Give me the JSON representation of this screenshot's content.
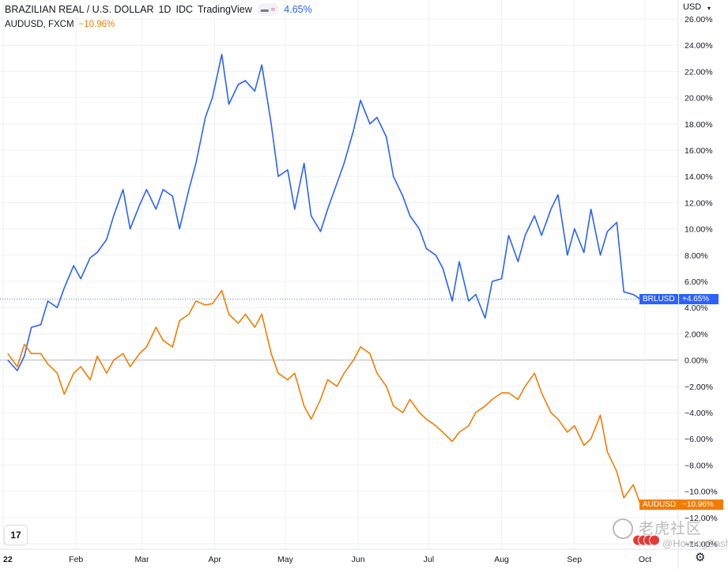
{
  "header": {
    "title": "BRAZILIAN REAL / U.S. DOLLAR",
    "interval": "1D",
    "source": "IDC",
    "platform": "TradingView",
    "pill_left": "▬",
    "pill_right": "≈",
    "change": "4.65%",
    "compare_symbol": "AUDUSD, FXCM",
    "compare_change": "−10.96%"
  },
  "axis": {
    "currency": "USD",
    "chevron": "▾"
  },
  "tags": {
    "brl_name": "BRLUSD",
    "brl_value": "+4.65%",
    "aud_name": "AUDUSD",
    "aud_value": "−10.96%"
  },
  "watermark": {
    "text_cn": "老虎社区",
    "handle": "@HowingCash"
  },
  "icons": {
    "logo": "tradingview-logo-icon",
    "settings": "gear-icon",
    "watermark": "tiger-logo-icon"
  },
  "colors": {
    "brl": "#2962ff",
    "aud": "#f57c00",
    "grid": "#eef0f3",
    "zero": "#b2b5be",
    "text": "#131722"
  },
  "chart_data": {
    "type": "line",
    "y_unit": "%",
    "ylim": [
      -14,
      26
    ],
    "yticks": [
      "26.00%",
      "24.00%",
      "22.00%",
      "20.00%",
      "18.00%",
      "16.00%",
      "14.00%",
      "12.00%",
      "10.00%",
      "8.00%",
      "6.00%",
      "4.00%",
      "2.00%",
      "0.00%",
      "−2.00%",
      "−4.00%",
      "−6.00%",
      "−8.00%",
      "−10.00%",
      "−12.00%",
      "−14.00%"
    ],
    "ytick_values": [
      26,
      24,
      22,
      20,
      18,
      16,
      14,
      12,
      10,
      8,
      6,
      4,
      2,
      0,
      -2,
      -4,
      -6,
      -8,
      -10,
      -12,
      -14
    ],
    "xticks": [
      {
        "label": "22",
        "date": "2022-01-01"
      },
      {
        "label": "Feb",
        "date": "2022-02-01"
      },
      {
        "label": "Mar",
        "date": "2022-03-01"
      },
      {
        "label": "Apr",
        "date": "2022-04-01"
      },
      {
        "label": "May",
        "date": "2022-05-01"
      },
      {
        "label": "Jun",
        "date": "2022-06-01"
      },
      {
        "label": "Jul",
        "date": "2022-07-01"
      },
      {
        "label": "Aug",
        "date": "2022-08-01"
      },
      {
        "label": "Sep",
        "date": "2022-09-01"
      },
      {
        "label": "Oct",
        "date": "2022-10-01"
      }
    ],
    "grid": true,
    "series": [
      {
        "name": "BRLUSD",
        "color": "#2962ff",
        "last": 4.65,
        "points": [
          [
            "2022-01-03",
            0.0
          ],
          [
            "2022-01-07",
            -0.8
          ],
          [
            "2022-01-10",
            0.3
          ],
          [
            "2022-01-13",
            2.5
          ],
          [
            "2022-01-17",
            2.7
          ],
          [
            "2022-01-20",
            4.5
          ],
          [
            "2022-01-24",
            4.0
          ],
          [
            "2022-01-27",
            5.5
          ],
          [
            "2022-01-31",
            7.2
          ],
          [
            "2022-02-03",
            6.2
          ],
          [
            "2022-02-07",
            7.8
          ],
          [
            "2022-02-10",
            8.2
          ],
          [
            "2022-02-14",
            9.2
          ],
          [
            "2022-02-17",
            11.0
          ],
          [
            "2022-02-21",
            13.0
          ],
          [
            "2022-02-24",
            10.0
          ],
          [
            "2022-02-28",
            11.8
          ],
          [
            "2022-03-03",
            13.0
          ],
          [
            "2022-03-07",
            11.5
          ],
          [
            "2022-03-10",
            13.0
          ],
          [
            "2022-03-14",
            12.5
          ],
          [
            "2022-03-17",
            10.0
          ],
          [
            "2022-03-21",
            13.0
          ],
          [
            "2022-03-24",
            15.0
          ],
          [
            "2022-03-28",
            18.5
          ],
          [
            "2022-03-31",
            20.0
          ],
          [
            "2022-04-04",
            23.3
          ],
          [
            "2022-04-07",
            19.5
          ],
          [
            "2022-04-11",
            21.0
          ],
          [
            "2022-04-14",
            21.3
          ],
          [
            "2022-04-18",
            20.5
          ],
          [
            "2022-04-21",
            22.5
          ],
          [
            "2022-04-25",
            18.0
          ],
          [
            "2022-04-28",
            14.0
          ],
          [
            "2022-05-02",
            14.5
          ],
          [
            "2022-05-05",
            11.5
          ],
          [
            "2022-05-09",
            15.0
          ],
          [
            "2022-05-12",
            11.0
          ],
          [
            "2022-05-16",
            9.8
          ],
          [
            "2022-05-19",
            11.5
          ],
          [
            "2022-05-23",
            13.5
          ],
          [
            "2022-05-26",
            15.0
          ],
          [
            "2022-05-30",
            17.5
          ],
          [
            "2022-06-02",
            19.8
          ],
          [
            "2022-06-06",
            18.0
          ],
          [
            "2022-06-09",
            18.5
          ],
          [
            "2022-06-13",
            17.0
          ],
          [
            "2022-06-16",
            14.0
          ],
          [
            "2022-06-20",
            12.5
          ],
          [
            "2022-06-23",
            11.0
          ],
          [
            "2022-06-27",
            10.0
          ],
          [
            "2022-06-30",
            8.5
          ],
          [
            "2022-07-04",
            8.0
          ],
          [
            "2022-07-07",
            7.0
          ],
          [
            "2022-07-11",
            4.5
          ],
          [
            "2022-07-14",
            7.5
          ],
          [
            "2022-07-18",
            4.5
          ],
          [
            "2022-07-21",
            5.0
          ],
          [
            "2022-07-25",
            3.2
          ],
          [
            "2022-07-28",
            6.0
          ],
          [
            "2022-08-01",
            6.2
          ],
          [
            "2022-08-04",
            9.5
          ],
          [
            "2022-08-08",
            7.5
          ],
          [
            "2022-08-11",
            9.5
          ],
          [
            "2022-08-15",
            11.0
          ],
          [
            "2022-08-18",
            9.5
          ],
          [
            "2022-08-22",
            11.5
          ],
          [
            "2022-08-25",
            12.6
          ],
          [
            "2022-08-29",
            8.0
          ],
          [
            "2022-09-01",
            10.0
          ],
          [
            "2022-09-05",
            8.2
          ],
          [
            "2022-09-08",
            11.5
          ],
          [
            "2022-09-12",
            8.0
          ],
          [
            "2022-09-15",
            9.8
          ],
          [
            "2022-09-19",
            10.5
          ],
          [
            "2022-09-22",
            5.2
          ],
          [
            "2022-09-26",
            5.0
          ],
          [
            "2022-09-29",
            4.65
          ]
        ]
      },
      {
        "name": "AUDUSD",
        "color": "#f57c00",
        "last": -10.96,
        "points": [
          [
            "2022-01-03",
            0.5
          ],
          [
            "2022-01-07",
            -0.5
          ],
          [
            "2022-01-10",
            1.2
          ],
          [
            "2022-01-13",
            0.5
          ],
          [
            "2022-01-17",
            0.5
          ],
          [
            "2022-01-20",
            -0.3
          ],
          [
            "2022-01-24",
            -1.0
          ],
          [
            "2022-01-27",
            -2.6
          ],
          [
            "2022-01-31",
            -1.0
          ],
          [
            "2022-02-03",
            -0.5
          ],
          [
            "2022-02-07",
            -1.5
          ],
          [
            "2022-02-10",
            0.3
          ],
          [
            "2022-02-14",
            -1.0
          ],
          [
            "2022-02-17",
            0.0
          ],
          [
            "2022-02-21",
            0.5
          ],
          [
            "2022-02-24",
            -0.5
          ],
          [
            "2022-02-28",
            0.5
          ],
          [
            "2022-03-03",
            1.0
          ],
          [
            "2022-03-07",
            2.5
          ],
          [
            "2022-03-10",
            1.5
          ],
          [
            "2022-03-14",
            1.0
          ],
          [
            "2022-03-17",
            3.0
          ],
          [
            "2022-03-21",
            3.5
          ],
          [
            "2022-03-24",
            4.5
          ],
          [
            "2022-03-28",
            4.2
          ],
          [
            "2022-03-31",
            4.3
          ],
          [
            "2022-04-04",
            5.3
          ],
          [
            "2022-04-07",
            3.5
          ],
          [
            "2022-04-11",
            2.8
          ],
          [
            "2022-04-14",
            3.5
          ],
          [
            "2022-04-18",
            2.5
          ],
          [
            "2022-04-21",
            3.5
          ],
          [
            "2022-04-25",
            0.5
          ],
          [
            "2022-04-28",
            -1.0
          ],
          [
            "2022-05-02",
            -1.5
          ],
          [
            "2022-05-05",
            -1.0
          ],
          [
            "2022-05-09",
            -3.5
          ],
          [
            "2022-05-12",
            -4.5
          ],
          [
            "2022-05-16",
            -3.0
          ],
          [
            "2022-05-19",
            -1.5
          ],
          [
            "2022-05-23",
            -2.0
          ],
          [
            "2022-05-26",
            -1.0
          ],
          [
            "2022-05-30",
            0.0
          ],
          [
            "2022-06-02",
            1.0
          ],
          [
            "2022-06-06",
            0.5
          ],
          [
            "2022-06-09",
            -1.0
          ],
          [
            "2022-06-13",
            -2.0
          ],
          [
            "2022-06-16",
            -3.5
          ],
          [
            "2022-06-20",
            -4.0
          ],
          [
            "2022-06-23",
            -3.0
          ],
          [
            "2022-06-27",
            -4.0
          ],
          [
            "2022-06-30",
            -4.5
          ],
          [
            "2022-07-04",
            -5.0
          ],
          [
            "2022-07-07",
            -5.5
          ],
          [
            "2022-07-11",
            -6.2
          ],
          [
            "2022-07-14",
            -5.5
          ],
          [
            "2022-07-18",
            -5.0
          ],
          [
            "2022-07-21",
            -4.0
          ],
          [
            "2022-07-25",
            -3.5
          ],
          [
            "2022-07-28",
            -3.0
          ],
          [
            "2022-08-01",
            -2.5
          ],
          [
            "2022-08-04",
            -2.5
          ],
          [
            "2022-08-08",
            -3.0
          ],
          [
            "2022-08-11",
            -2.0
          ],
          [
            "2022-08-15",
            -1.0
          ],
          [
            "2022-08-18",
            -2.5
          ],
          [
            "2022-08-22",
            -4.0
          ],
          [
            "2022-08-25",
            -4.5
          ],
          [
            "2022-08-29",
            -5.5
          ],
          [
            "2022-09-01",
            -5.0
          ],
          [
            "2022-09-05",
            -6.5
          ],
          [
            "2022-09-08",
            -6.0
          ],
          [
            "2022-09-12",
            -4.2
          ],
          [
            "2022-09-15",
            -7.0
          ],
          [
            "2022-09-19",
            -8.5
          ],
          [
            "2022-09-22",
            -10.5
          ],
          [
            "2022-09-26",
            -9.5
          ],
          [
            "2022-09-29",
            -10.96
          ]
        ]
      }
    ]
  }
}
